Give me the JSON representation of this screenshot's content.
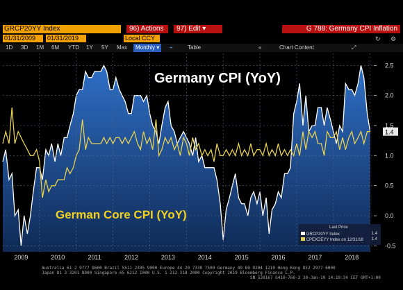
{
  "toolbar": {
    "ticker": "GRCP20YY Index",
    "actions_label": "96) Actions ▾",
    "edit_label": "97) Edit ▾",
    "function_title": "G 788: Germany CPI Inflation",
    "start_date": "01/31/2009",
    "end_date": "01/31/2019",
    "currency": "Local CCY",
    "periods": [
      "1D",
      "3D",
      "1M",
      "6M",
      "YTD",
      "1Y",
      "5Y",
      "Max"
    ],
    "frequency": "Monthly ▾",
    "table_label": "Table",
    "chart_content_label": "Chart Content"
  },
  "legend": {
    "header": "Last Price",
    "rows": [
      {
        "name": "GRCP20YY Index",
        "value": "1.4"
      },
      {
        "name": "CPEXDEYY Index  on 12/31/18",
        "value": "1.4"
      }
    ]
  },
  "footer": {
    "line1": "Australia 61 2 9777 8600 Brazil 5511 2395 9000 Europe 44 20 7330 7500 Germany 49 69 9204 1210 Hong Kong 852 2977 6000",
    "line2": "Japan 81 3 3201 8900          Singapore 65 6212 1000          U.S. 1 212 318 2000          Copyright 2019 Bloomberg Finance L.P.",
    "line3": "SN 520167 G410-760-3 30-Jan-19 14:19:34 CET  GMT+1:00"
  },
  "chart_data": {
    "type": "area",
    "title": "",
    "xlabel": "",
    "ylabel": "",
    "xlim": [
      2009.0,
      2019.1
    ],
    "ylim": [
      -0.6,
      2.7
    ],
    "x_ticks": [
      "2009",
      "2010",
      "2011",
      "2012",
      "2013",
      "2014",
      "2015",
      "2016",
      "2017",
      "2018"
    ],
    "y_ticks": [
      -0.5,
      0,
      0.5,
      1.0,
      1.5,
      2.0,
      2.5
    ],
    "grid": true,
    "last_value_label": "1.4",
    "annotations": [
      {
        "text": "Germany CPI (YoY)",
        "color": "#ffffff"
      },
      {
        "text": "German Core CPI (YoY)",
        "color": "#f0d020"
      }
    ],
    "series": [
      {
        "name": "Germany CPI (YoY)",
        "render": "area",
        "color": "#2a6fd0",
        "points": [
          [
            2009.0,
            0.9
          ],
          [
            2009.08,
            1.1
          ],
          [
            2009.17,
            0.6
          ],
          [
            2009.25,
            0.7
          ],
          [
            2009.33,
            0.0
          ],
          [
            2009.42,
            0.1
          ],
          [
            2009.5,
            -0.5
          ],
          [
            2009.58,
            0.0
          ],
          [
            2009.67,
            -0.3
          ],
          [
            2009.75,
            0.0
          ],
          [
            2009.83,
            0.4
          ],
          [
            2009.92,
            0.8
          ],
          [
            2010.0,
            0.8
          ],
          [
            2010.08,
            0.6
          ],
          [
            2010.17,
            1.1
          ],
          [
            2010.25,
            1.0
          ],
          [
            2010.33,
            1.2
          ],
          [
            2010.42,
            0.9
          ],
          [
            2010.5,
            1.2
          ],
          [
            2010.58,
            1.0
          ],
          [
            2010.67,
            1.3
          ],
          [
            2010.75,
            1.3
          ],
          [
            2010.83,
            1.5
          ],
          [
            2010.92,
            1.7
          ],
          [
            2011.0,
            2.0
          ],
          [
            2011.08,
            2.1
          ],
          [
            2011.17,
            2.1
          ],
          [
            2011.25,
            2.4
          ],
          [
            2011.33,
            2.3
          ],
          [
            2011.42,
            2.3
          ],
          [
            2011.5,
            2.4
          ],
          [
            2011.58,
            2.4
          ],
          [
            2011.67,
            2.4
          ],
          [
            2011.75,
            2.5
          ],
          [
            2011.83,
            2.4
          ],
          [
            2011.92,
            2.1
          ],
          [
            2012.0,
            2.1
          ],
          [
            2012.08,
            2.3
          ],
          [
            2012.17,
            2.1
          ],
          [
            2012.25,
            2.0
          ],
          [
            2012.33,
            1.9
          ],
          [
            2012.42,
            1.7
          ],
          [
            2012.5,
            1.7
          ],
          [
            2012.58,
            2.0
          ],
          [
            2012.67,
            2.0
          ],
          [
            2012.75,
            2.0
          ],
          [
            2012.83,
            1.9
          ],
          [
            2012.92,
            2.0
          ],
          [
            2013.0,
            1.7
          ],
          [
            2013.08,
            1.5
          ],
          [
            2013.17,
            1.4
          ],
          [
            2013.25,
            1.2
          ],
          [
            2013.33,
            1.5
          ],
          [
            2013.42,
            1.8
          ],
          [
            2013.5,
            1.9
          ],
          [
            2013.58,
            1.5
          ],
          [
            2013.67,
            1.4
          ],
          [
            2013.75,
            1.2
          ],
          [
            2013.83,
            1.3
          ],
          [
            2013.92,
            1.4
          ],
          [
            2014.0,
            1.3
          ],
          [
            2014.08,
            1.2
          ],
          [
            2014.17,
            1.0
          ],
          [
            2014.25,
            1.3
          ],
          [
            2014.33,
            0.9
          ],
          [
            2014.42,
            1.0
          ],
          [
            2014.5,
            0.8
          ],
          [
            2014.58,
            0.8
          ],
          [
            2014.67,
            0.8
          ],
          [
            2014.75,
            0.8
          ],
          [
            2014.83,
            0.6
          ],
          [
            2014.92,
            0.2
          ],
          [
            2015.0,
            -0.4
          ],
          [
            2015.08,
            0.1
          ],
          [
            2015.17,
            0.3
          ],
          [
            2015.25,
            0.5
          ],
          [
            2015.33,
            0.7
          ],
          [
            2015.42,
            0.3
          ],
          [
            2015.5,
            0.2
          ],
          [
            2015.58,
            0.2
          ],
          [
            2015.67,
            0.0
          ],
          [
            2015.75,
            0.3
          ],
          [
            2015.83,
            0.4
          ],
          [
            2015.92,
            0.2
          ],
          [
            2016.0,
            0.4
          ],
          [
            2016.08,
            0.0
          ],
          [
            2016.17,
            0.3
          ],
          [
            2016.25,
            -0.3
          ],
          [
            2016.33,
            0.1
          ],
          [
            2016.42,
            0.2
          ],
          [
            2016.5,
            0.4
          ],
          [
            2016.58,
            0.3
          ],
          [
            2016.67,
            0.7
          ],
          [
            2016.75,
            0.7
          ],
          [
            2016.83,
            0.8
          ],
          [
            2016.92,
            1.7
          ],
          [
            2017.0,
            1.9
          ],
          [
            2017.08,
            2.2
          ],
          [
            2017.17,
            1.5
          ],
          [
            2017.25,
            2.0
          ],
          [
            2017.33,
            1.4
          ],
          [
            2017.42,
            1.5
          ],
          [
            2017.5,
            1.5
          ],
          [
            2017.58,
            1.8
          ],
          [
            2017.67,
            1.8
          ],
          [
            2017.75,
            1.5
          ],
          [
            2017.83,
            1.8
          ],
          [
            2017.92,
            1.6
          ],
          [
            2018.0,
            1.4
          ],
          [
            2018.08,
            1.2
          ],
          [
            2018.17,
            1.5
          ],
          [
            2018.25,
            1.4
          ],
          [
            2018.33,
            2.2
          ],
          [
            2018.42,
            2.1
          ],
          [
            2018.5,
            2.1
          ],
          [
            2018.58,
            2.0
          ],
          [
            2018.67,
            2.2
          ],
          [
            2018.75,
            2.5
          ],
          [
            2018.83,
            2.3
          ],
          [
            2018.92,
            1.7
          ],
          [
            2019.0,
            1.4
          ]
        ]
      },
      {
        "name": "German Core CPI (YoY)",
        "render": "line",
        "color": "#e8d050",
        "points": [
          [
            2009.0,
            1.2
          ],
          [
            2009.08,
            1.4
          ],
          [
            2009.17,
            1.2
          ],
          [
            2009.25,
            1.8
          ],
          [
            2009.33,
            1.2
          ],
          [
            2009.42,
            1.4
          ],
          [
            2009.5,
            1.3
          ],
          [
            2009.58,
            1.2
          ],
          [
            2009.67,
            1.1
          ],
          [
            2009.75,
            1.0
          ],
          [
            2009.83,
            1.0
          ],
          [
            2009.92,
            1.1
          ],
          [
            2010.0,
            0.9
          ],
          [
            2010.08,
            0.3
          ],
          [
            2010.17,
            0.6
          ],
          [
            2010.25,
            0.4
          ],
          [
            2010.33,
            0.5
          ],
          [
            2010.42,
            0.5
          ],
          [
            2010.5,
            0.6
          ],
          [
            2010.58,
            0.6
          ],
          [
            2010.67,
            0.6
          ],
          [
            2010.75,
            0.8
          ],
          [
            2010.83,
            0.7
          ],
          [
            2010.92,
            0.8
          ],
          [
            2011.0,
            1.0
          ],
          [
            2011.08,
            1.1
          ],
          [
            2011.17,
            1.6
          ],
          [
            2011.25,
            1.1
          ],
          [
            2011.33,
            1.3
          ],
          [
            2011.42,
            1.2
          ],
          [
            2011.5,
            1.2
          ],
          [
            2011.58,
            1.2
          ],
          [
            2011.67,
            1.2
          ],
          [
            2011.75,
            1.3
          ],
          [
            2011.83,
            1.2
          ],
          [
            2011.92,
            1.3
          ],
          [
            2012.0,
            1.2
          ],
          [
            2012.08,
            1.3
          ],
          [
            2012.17,
            1.3
          ],
          [
            2012.25,
            1.2
          ],
          [
            2012.33,
            1.3
          ],
          [
            2012.42,
            1.2
          ],
          [
            2012.5,
            1.3
          ],
          [
            2012.58,
            1.4
          ],
          [
            2012.67,
            1.2
          ],
          [
            2012.75,
            1.1
          ],
          [
            2012.83,
            1.4
          ],
          [
            2012.92,
            1.2
          ],
          [
            2013.0,
            1.3
          ],
          [
            2013.08,
            1.1
          ],
          [
            2013.17,
            1.6
          ],
          [
            2013.25,
            1.0
          ],
          [
            2013.33,
            1.1
          ],
          [
            2013.42,
            1.3
          ],
          [
            2013.5,
            1.2
          ],
          [
            2013.58,
            1.3
          ],
          [
            2013.67,
            1.1
          ],
          [
            2013.75,
            1.2
          ],
          [
            2013.83,
            1.0
          ],
          [
            2013.92,
            1.3
          ],
          [
            2014.0,
            1.2
          ],
          [
            2014.08,
            1.0
          ],
          [
            2014.17,
            1.3
          ],
          [
            2014.25,
            1.1
          ],
          [
            2014.33,
            1.2
          ],
          [
            2014.42,
            1.0
          ],
          [
            2014.5,
            1.1
          ],
          [
            2014.58,
            1.0
          ],
          [
            2014.67,
            1.1
          ],
          [
            2014.75,
            0.9
          ],
          [
            2014.83,
            1.2
          ],
          [
            2014.92,
            1.0
          ],
          [
            2015.0,
            1.0
          ],
          [
            2015.08,
            1.1
          ],
          [
            2015.17,
            1.0
          ],
          [
            2015.25,
            1.1
          ],
          [
            2015.33,
            1.0
          ],
          [
            2015.42,
            1.2
          ],
          [
            2015.5,
            1.0
          ],
          [
            2015.58,
            1.1
          ],
          [
            2015.67,
            1.0
          ],
          [
            2015.75,
            1.2
          ],
          [
            2015.83,
            1.0
          ],
          [
            2015.92,
            1.1
          ],
          [
            2016.0,
            1.1
          ],
          [
            2016.08,
            1.0
          ],
          [
            2016.17,
            1.2
          ],
          [
            2016.25,
            1.0
          ],
          [
            2016.33,
            1.1
          ],
          [
            2016.42,
            1.0
          ],
          [
            2016.5,
            1.2
          ],
          [
            2016.58,
            1.0
          ],
          [
            2016.67,
            1.1
          ],
          [
            2016.75,
            1.0
          ],
          [
            2016.83,
            1.1
          ],
          [
            2016.92,
            1.0
          ],
          [
            2017.0,
            1.2
          ],
          [
            2017.08,
            1.0
          ],
          [
            2017.17,
            1.4
          ],
          [
            2017.25,
            1.1
          ],
          [
            2017.33,
            1.4
          ],
          [
            2017.42,
            1.3
          ],
          [
            2017.5,
            1.4
          ],
          [
            2017.58,
            1.2
          ],
          [
            2017.67,
            1.2
          ],
          [
            2017.75,
            1.0
          ],
          [
            2017.83,
            1.4
          ],
          [
            2017.92,
            1.3
          ],
          [
            2018.0,
            1.3
          ],
          [
            2018.08,
            1.4
          ],
          [
            2018.17,
            1.1
          ],
          [
            2018.25,
            1.3
          ],
          [
            2018.33,
            1.1
          ],
          [
            2018.42,
            1.3
          ],
          [
            2018.5,
            1.4
          ],
          [
            2018.58,
            1.2
          ],
          [
            2018.67,
            1.3
          ],
          [
            2018.75,
            1.4
          ],
          [
            2018.83,
            1.2
          ],
          [
            2018.92,
            1.4
          ],
          [
            2019.0,
            1.4
          ]
        ]
      }
    ]
  }
}
